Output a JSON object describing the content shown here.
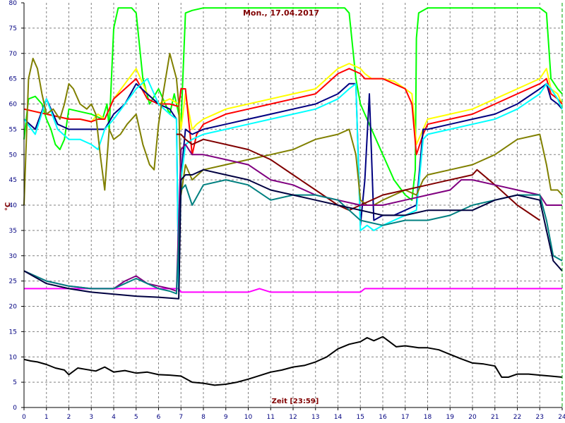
{
  "chart_data": {
    "type": "line",
    "title": "Mon., 17.04.2017",
    "xlabel": "Zeit [23:59]",
    "ylabel": "°C",
    "xlim": [
      0,
      24
    ],
    "ylim": [
      0,
      80
    ],
    "xticks": [
      "0",
      "1",
      "2",
      "3",
      "4",
      "5",
      "6",
      "7",
      "8",
      "9",
      "10",
      "11",
      "12",
      "13",
      "14",
      "15",
      "16",
      "17",
      "18",
      "19",
      "20",
      "21",
      "22",
      "23",
      "24"
    ],
    "yticks": [
      "0",
      "5",
      "10",
      "15",
      "20",
      "25",
      "30",
      "35",
      "40",
      "45",
      "50",
      "55",
      "60",
      "65",
      "70",
      "75",
      "80"
    ],
    "grid": true,
    "series": [
      {
        "color": "#000000",
        "x": [
          0,
          0.3,
          0.6,
          1,
          1.4,
          1.8,
          2,
          2.4,
          2.8,
          3.2,
          3.6,
          4,
          4.5,
          5,
          5.5,
          6,
          6.5,
          7,
          7.5,
          8,
          8.5,
          9,
          9.5,
          10,
          10.5,
          11,
          11.5,
          12,
          12.5,
          13,
          13.5,
          14,
          14.5,
          15,
          15.3,
          15.6,
          16,
          16.3,
          16.6,
          17,
          17.3,
          17.6,
          18,
          18.5,
          19,
          19.5,
          20,
          20.5,
          21,
          21.3,
          21.6,
          22,
          22.5,
          23,
          23.5,
          24
        ],
        "y": [
          9.5,
          9.2,
          9,
          8.5,
          7.8,
          7.4,
          6.5,
          7.8,
          7.5,
          7.2,
          8,
          7,
          7.3,
          6.8,
          7,
          6.5,
          6.4,
          6.2,
          5,
          4.8,
          4.4,
          4.6,
          5,
          5.6,
          6.3,
          7,
          7.4,
          8,
          8.3,
          9,
          10,
          11.6,
          12.5,
          13,
          13.8,
          13.2,
          14,
          13,
          12,
          12.2,
          12,
          11.8,
          11.8,
          11.4,
          10.5,
          9.6,
          8.8,
          8.6,
          8.2,
          6,
          6,
          6.6,
          6.6,
          6.4,
          6.2,
          6
        ]
      },
      {
        "color": "#ff00ff",
        "x": [
          0,
          1,
          2,
          3,
          4,
          5,
          6,
          6.9,
          7,
          10,
          10.5,
          11,
          13,
          15,
          15.2,
          16,
          17,
          19,
          19.5,
          20,
          20.3,
          21,
          22,
          23,
          24
        ],
        "y": [
          23.5,
          23.5,
          23.5,
          23.5,
          23.5,
          23.5,
          23.5,
          23.5,
          22.8,
          22.8,
          23.5,
          22.8,
          22.8,
          22.8,
          23.5,
          23.5,
          23.5,
          23.5,
          23.5,
          23.5,
          23.5,
          23.5,
          23.5,
          23.5,
          23.5
        ]
      },
      {
        "color": "#00ff00",
        "x": [
          0,
          0.2,
          0.5,
          0.8,
          1,
          1.2,
          1.4,
          1.6,
          1.8,
          2,
          2.5,
          3,
          3.5,
          3.7,
          3.8,
          4,
          4.2,
          4.5,
          4.8,
          5,
          5.3,
          5.6,
          6,
          6.5,
          6.7,
          6.8,
          7,
          7.2,
          7.5,
          8,
          9,
          10,
          12,
          14,
          14.3,
          14.5,
          14.8,
          15,
          15.2,
          15.5,
          16,
          16.5,
          17,
          17.3,
          17.45,
          17.5,
          17.6,
          18,
          20,
          22,
          23,
          23.3,
          23.5,
          23.8,
          24
        ],
        "y": [
          53,
          61,
          61.5,
          60,
          57,
          55,
          52,
          51,
          53,
          59,
          58.5,
          58,
          57,
          60,
          55,
          75,
          79,
          79,
          79,
          78,
          65,
          60,
          63,
          58,
          62,
          60,
          56,
          78,
          78.5,
          79,
          79,
          79,
          79,
          79,
          79,
          78,
          65,
          60,
          58,
          55,
          50,
          45,
          42,
          41,
          47,
          73,
          78,
          79,
          79,
          79,
          79,
          78,
          65,
          63,
          62
        ]
      },
      {
        "color": "#ffff00",
        "x": [
          0,
          0.5,
          1,
          1.5,
          2,
          2.5,
          3,
          3.3,
          3.6,
          4,
          4.5,
          5,
          5.5,
          6,
          6.5,
          6.9,
          7,
          7.2,
          7.5,
          7.7,
          8,
          8.5,
          9,
          10,
          11,
          12,
          13,
          14,
          14.5,
          15,
          15.2,
          15.5,
          16,
          16.5,
          17,
          17.3,
          17.5,
          17.8,
          18,
          19,
          20,
          21,
          22,
          23,
          23.3,
          23.5,
          23.8,
          24
        ],
        "y": [
          59,
          58.5,
          58,
          57.5,
          57,
          57,
          56.5,
          58,
          57,
          61,
          64,
          67,
          62,
          60,
          61,
          60,
          55,
          62,
          55,
          56,
          57,
          58,
          59,
          60,
          61,
          62,
          63,
          67,
          68,
          67,
          66,
          65,
          65,
          64.5,
          63,
          62,
          52,
          55,
          57,
          58,
          59,
          61,
          63,
          65,
          67,
          63,
          62,
          60
        ]
      },
      {
        "color": "#ff0000",
        "x": [
          0,
          0.5,
          1,
          1.5,
          2,
          2.5,
          3,
          3.3,
          3.6,
          4,
          4.5,
          5,
          5.5,
          6,
          6.5,
          6.9,
          7,
          7.2,
          7.5,
          7.7,
          8,
          8.5,
          9,
          10,
          11,
          12,
          13,
          14,
          14.5,
          15,
          15.2,
          15.5,
          16,
          16.5,
          17,
          17.3,
          17.5,
          17.8,
          18,
          19,
          20,
          21,
          22,
          23,
          23.3,
          23.5,
          23.8,
          24
        ],
        "y": [
          59,
          58.5,
          58,
          57.5,
          57,
          57,
          56.5,
          57,
          57,
          61,
          63,
          65,
          61,
          60,
          60,
          59.5,
          63,
          63,
          50,
          54,
          56,
          57,
          58,
          59,
          60,
          61,
          62,
          66,
          67,
          66,
          65,
          65,
          65,
          64,
          63,
          60,
          50,
          54,
          56,
          57,
          58,
          60,
          62,
          64,
          65,
          62,
          61,
          60
        ]
      },
      {
        "color": "#000080",
        "x": [
          0,
          0.5,
          1,
          1.5,
          2,
          2.5,
          3,
          3.3,
          3.6,
          4,
          4.5,
          5,
          5.5,
          6,
          6.5,
          6.8,
          6.9,
          7,
          7.2,
          7.5,
          8,
          9,
          10,
          11,
          12,
          13,
          14,
          14.5,
          14.8,
          15,
          15.2,
          15.4,
          15.6,
          16,
          16.5,
          17,
          17.5,
          17.8,
          18,
          19,
          20,
          21,
          22,
          23,
          23.3,
          23.5,
          23.8,
          24
        ],
        "y": [
          57,
          55,
          61,
          56,
          55,
          55,
          55,
          55,
          55,
          58,
          60,
          64,
          62,
          60,
          59,
          57,
          23,
          46,
          55,
          54,
          55,
          56,
          57,
          58,
          59,
          60,
          62,
          64,
          64,
          36,
          45,
          62,
          37,
          38,
          38,
          39,
          40,
          55,
          55,
          56,
          57,
          58,
          60,
          63,
          64,
          61,
          60,
          59
        ]
      },
      {
        "color": "#00ffff",
        "x": [
          0,
          0.5,
          1,
          1.5,
          2,
          2.5,
          3,
          3.3,
          3.6,
          4,
          4.5,
          5,
          5.5,
          6,
          6.5,
          6.8,
          6.9,
          7,
          7.2,
          7.5,
          8,
          9,
          10,
          11,
          12,
          13,
          14,
          14.5,
          14.8,
          15,
          15.3,
          15.6,
          16,
          16.5,
          17,
          17.5,
          17.8,
          18,
          19,
          20,
          21,
          22,
          23,
          23.3,
          23.5,
          23.8,
          24
        ],
        "y": [
          57,
          54,
          61,
          55,
          53,
          53,
          52,
          51,
          55,
          57,
          60,
          63,
          65,
          60,
          58,
          57,
          23,
          45,
          52,
          53,
          54,
          55,
          56,
          57,
          58,
          59,
          61,
          63,
          64,
          35,
          36,
          35,
          36,
          37,
          38,
          39,
          53,
          54,
          55,
          56,
          57,
          59,
          62,
          64,
          63,
          61,
          59
        ]
      },
      {
        "color": "#808000",
        "x": [
          0,
          0.2,
          0.4,
          0.6,
          0.8,
          1,
          1.3,
          1.6,
          1.8,
          2,
          2.2,
          2.5,
          2.8,
          3,
          3.2,
          3.4,
          3.6,
          3.8,
          4,
          4.3,
          4.6,
          5,
          5.3,
          5.6,
          5.8,
          6,
          6.2,
          6.5,
          6.8,
          6.9,
          7,
          7.2,
          7.5,
          8,
          9,
          10,
          11,
          12,
          13,
          14,
          14.5,
          14.8,
          15,
          15.3,
          15.6,
          16,
          16.5,
          17,
          17.5,
          17.8,
          18,
          19,
          20,
          21,
          22,
          23,
          23.3,
          23.5,
          23.8,
          24
        ],
        "y": [
          40,
          65,
          69,
          67,
          62,
          58,
          59,
          57,
          60,
          64,
          63,
          60,
          59,
          60,
          58,
          50,
          43,
          55,
          53,
          54,
          56,
          58,
          52,
          48,
          47,
          56,
          62,
          70,
          65,
          60,
          42,
          48,
          45,
          47,
          48,
          49,
          50,
          51,
          53,
          54,
          55,
          50,
          41,
          40,
          40,
          41,
          42,
          43,
          42,
          45,
          46,
          47,
          48,
          50,
          53,
          54,
          48,
          43,
          43,
          42
        ]
      },
      {
        "color": "#800000",
        "x": [
          6.8,
          7,
          7.2,
          7.5,
          8,
          9,
          10,
          11,
          12,
          13,
          14,
          14.5,
          15,
          16,
          17,
          18,
          19,
          20,
          20.2,
          21,
          22,
          23
        ],
        "y": [
          54,
          54,
          53,
          52,
          53,
          52,
          51,
          49,
          46,
          43,
          40,
          39,
          40,
          42,
          43,
          44,
          45,
          46,
          47,
          44,
          40,
          37
        ]
      },
      {
        "color": "#800080",
        "x": [
          0,
          1,
          2,
          3,
          4,
          4.5,
          5,
          5.5,
          6,
          6.5,
          6.8,
          7,
          7.2,
          7.5,
          8,
          9,
          10,
          11,
          12,
          13,
          14,
          15,
          16,
          17,
          18,
          19,
          19.5,
          20,
          21,
          22,
          23,
          23.3,
          23.6,
          24
        ],
        "y": [
          27,
          25,
          24,
          23.5,
          23.5,
          25,
          26,
          24.5,
          24,
          23.5,
          23,
          51,
          52,
          50,
          50,
          49,
          48,
          45,
          44,
          42,
          41,
          40,
          40,
          41,
          42,
          43,
          45,
          45,
          44,
          43,
          42,
          40,
          40,
          40
        ]
      },
      {
        "color": "#008080",
        "x": [
          0,
          1,
          2,
          3,
          4,
          4.5,
          5,
          5.5,
          6,
          6.5,
          6.8,
          7,
          7.2,
          7.5,
          8,
          9,
          10,
          11,
          12,
          13,
          14,
          15,
          16,
          17,
          18,
          19,
          20,
          21,
          22,
          23,
          23.3,
          23.6,
          24
        ],
        "y": [
          27,
          25,
          24,
          23.5,
          23.5,
          24.5,
          25.5,
          24.5,
          23.5,
          23,
          22.5,
          43,
          44,
          40,
          44,
          45,
          44,
          41,
          42,
          42,
          41,
          37,
          36,
          37,
          37,
          38,
          40,
          41,
          42,
          42,
          37,
          30,
          29
        ]
      },
      {
        "color": "#000040",
        "x": [
          0,
          1,
          2,
          3,
          4,
          5,
          6,
          6.9,
          7,
          7.2,
          7.5,
          8,
          9,
          10,
          11,
          12,
          13,
          14,
          15,
          16,
          17,
          18,
          19,
          20,
          21,
          22,
          23,
          23.3,
          23.6,
          24
        ],
        "y": [
          27,
          24.5,
          23.5,
          22.8,
          22.4,
          22,
          21.8,
          21.5,
          45,
          46,
          46,
          47,
          46,
          45,
          43,
          42,
          41,
          40,
          39,
          38,
          38,
          39,
          39,
          39,
          41,
          42,
          41,
          35,
          29,
          27
        ]
      }
    ]
  }
}
